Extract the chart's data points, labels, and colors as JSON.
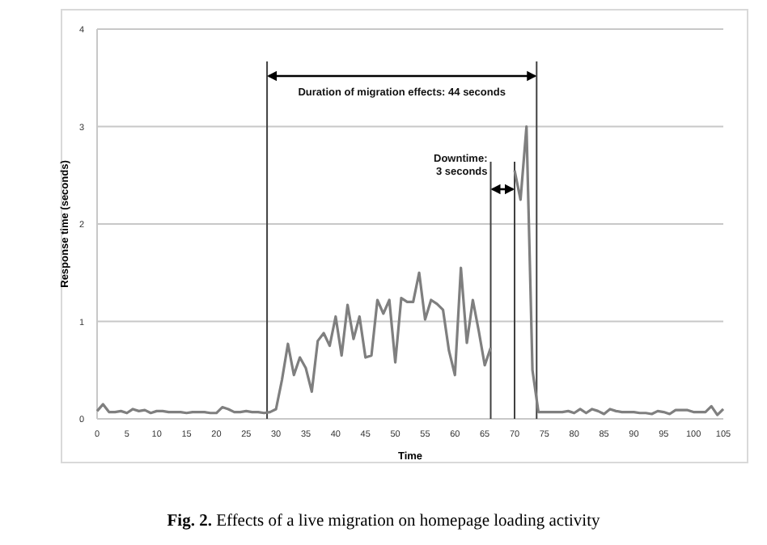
{
  "chart_data": {
    "type": "line",
    "title": "Fig. 2. Effects of a live migration on homepage loading activity",
    "xlabel": "Time",
    "ylabel": "Response time (seconds)",
    "series": [
      {
        "color": "#7f7f7f",
        "x": [
          0,
          1,
          2,
          3,
          4,
          5,
          6,
          7,
          8,
          9,
          10,
          11,
          12,
          13,
          14,
          15,
          16,
          17,
          18,
          19,
          20,
          21,
          22,
          23,
          24,
          25,
          26,
          27,
          28,
          29,
          30,
          31,
          32,
          33,
          34,
          35,
          36,
          37,
          38,
          39,
          40,
          41,
          42,
          43,
          44,
          45,
          46,
          47,
          48,
          49,
          50,
          51,
          52,
          53,
          54,
          55,
          56,
          57,
          58,
          59,
          60,
          61,
          62,
          63,
          64,
          65,
          66
        ],
        "values": [
          0.08,
          0.15,
          0.07,
          0.07,
          0.08,
          0.06,
          0.1,
          0.08,
          0.09,
          0.06,
          0.08,
          0.08,
          0.07,
          0.07,
          0.07,
          0.06,
          0.07,
          0.07,
          0.07,
          0.06,
          0.06,
          0.12,
          0.1,
          0.07,
          0.07,
          0.08,
          0.07,
          0.07,
          0.06,
          0.07,
          0.1,
          0.4,
          0.77,
          0.45,
          0.63,
          0.52,
          0.28,
          0.8,
          0.88,
          0.75,
          1.05,
          0.65,
          1.17,
          0.82,
          1.05,
          0.63,
          0.65,
          1.22,
          1.08,
          1.22,
          0.58,
          1.24,
          1.2,
          1.2,
          1.5,
          1.02,
          1.22,
          1.18,
          1.12,
          0.7,
          0.45,
          1.55,
          0.78,
          1.22,
          0.9,
          0.55,
          0.73
        ]
      },
      {
        "color": "#7f7f7f",
        "x": [
          70,
          71,
          72,
          73,
          74,
          75,
          76,
          77,
          78,
          79,
          80,
          81,
          82,
          83,
          84,
          85,
          86,
          87,
          88,
          89,
          90,
          91,
          92,
          93,
          94,
          95,
          96,
          97,
          98,
          99,
          100,
          101,
          102,
          103,
          104,
          105
        ],
        "values": [
          2.55,
          2.25,
          3.0,
          0.5,
          0.07,
          0.07,
          0.07,
          0.07,
          0.07,
          0.08,
          0.06,
          0.1,
          0.06,
          0.1,
          0.08,
          0.05,
          0.1,
          0.08,
          0.07,
          0.07,
          0.07,
          0.06,
          0.06,
          0.05,
          0.08,
          0.07,
          0.05,
          0.09,
          0.09,
          0.09,
          0.07,
          0.07,
          0.07,
          0.13,
          0.04,
          0.1
        ]
      }
    ],
    "xlim": [
      0,
      105
    ],
    "xticks": [
      0,
      5,
      10,
      15,
      20,
      25,
      30,
      35,
      40,
      45,
      50,
      55,
      60,
      65,
      70,
      75,
      80,
      85,
      90,
      95,
      100,
      105
    ],
    "ylim": [
      0,
      4
    ],
    "yticks": [
      0,
      1,
      2,
      3,
      4
    ],
    "grid": "y",
    "marker": "none",
    "line_style": "solid",
    "ref_lines": [
      {
        "axis": "x",
        "value": 28.5,
        "color": "#404040"
      },
      {
        "axis": "x",
        "value": 73.7,
        "color": "#404040"
      },
      {
        "axis": "x",
        "value": 66,
        "color": "#404040"
      },
      {
        "axis": "x",
        "value": 70,
        "color": "#404040"
      }
    ],
    "annotations": [
      "Duration of migration effects: 44 seconds",
      "Downtime:\n3 seconds"
    ]
  }
}
